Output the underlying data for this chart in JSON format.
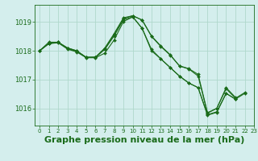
{
  "title": "Graphe pression niveau de la mer (hPa)",
  "background_color": "#d4eeed",
  "grid_color": "#b0d8cc",
  "line_color": "#1a6b1a",
  "marker_color": "#1a6b1a",
  "xlim": [
    -0.5,
    23
  ],
  "ylim": [
    1015.4,
    1019.6
  ],
  "yticks": [
    1016,
    1017,
    1018,
    1019
  ],
  "xticks": [
    0,
    1,
    2,
    3,
    4,
    5,
    6,
    7,
    8,
    9,
    10,
    11,
    12,
    13,
    14,
    15,
    16,
    17,
    18,
    19,
    20,
    21,
    22,
    23
  ],
  "series": [
    {
      "x": [
        0,
        1,
        2,
        3,
        4,
        5,
        6,
        7,
        8,
        9,
        10,
        11,
        12,
        13,
        14,
        15,
        16,
        17,
        18,
        19,
        20,
        21
      ],
      "y": [
        1018.0,
        1018.3,
        1018.3,
        1018.1,
        1018.0,
        1017.77,
        1017.78,
        1018.1,
        1018.6,
        1019.15,
        1019.22,
        1019.07,
        1018.5,
        1018.15,
        1017.85,
        1017.48,
        1017.38,
        1017.18,
        1015.85,
        1016.0,
        1016.72,
        1016.38
      ]
    },
    {
      "x": [
        0,
        1,
        2,
        3,
        4,
        5,
        6,
        7,
        8,
        9,
        10,
        11,
        12,
        13,
        14,
        15,
        16,
        17,
        18,
        19,
        20,
        21
      ],
      "y": [
        1018.0,
        1018.25,
        1018.3,
        1018.08,
        1017.98,
        1017.78,
        1017.78,
        1018.05,
        1018.52,
        1019.08,
        1019.18,
        1018.78,
        1018.05,
        1017.72,
        1017.42,
        1017.12,
        1016.88,
        1016.72,
        1015.78,
        1015.88,
        1016.52,
        1016.32
      ]
    },
    {
      "x": [
        0,
        1,
        2,
        3,
        4,
        5,
        6,
        7,
        8,
        9,
        10,
        11,
        12,
        13,
        14,
        15,
        16,
        17,
        18,
        19,
        20,
        21,
        22
      ],
      "y": [
        1018.0,
        1018.25,
        1018.28,
        1018.06,
        1017.96,
        1017.76,
        1017.76,
        1017.92,
        1018.38,
        1019.02,
        1019.18,
        1018.78,
        1018.0,
        1017.72,
        1017.42,
        1017.12,
        1016.88,
        1016.72,
        1015.76,
        1015.86,
        1016.52,
        1016.32,
        1016.52
      ]
    },
    {
      "x": [
        0,
        1,
        2,
        3,
        4,
        5,
        6,
        7,
        8,
        9,
        10,
        11,
        12,
        13,
        14,
        15,
        16,
        17,
        18,
        19,
        20,
        21,
        22
      ],
      "y": [
        1018.0,
        1018.26,
        1018.3,
        1018.1,
        1018.0,
        1017.77,
        1017.77,
        1018.07,
        1018.57,
        1019.12,
        1019.22,
        1019.07,
        1018.52,
        1018.17,
        1017.87,
        1017.47,
        1017.37,
        1017.12,
        1015.83,
        1016.0,
        1016.68,
        1016.35,
        1016.55
      ]
    }
  ],
  "title_fontsize": 8,
  "tick_fontsize": 6,
  "title_color": "#1a6b1a",
  "tick_color": "#1a6b1a",
  "spine_color": "#1a6b1a"
}
